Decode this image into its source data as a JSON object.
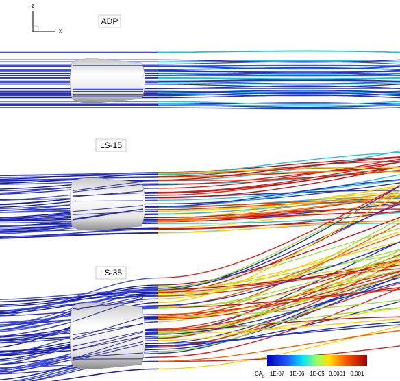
{
  "axes": {
    "vertical": "z",
    "horizontal": "x"
  },
  "panels": [
    {
      "label": "ADP"
    },
    {
      "label": "LS-15"
    },
    {
      "label": "LS-35"
    }
  ],
  "colorbar": {
    "title": "CA",
    "subscript": "b",
    "ticks": [
      "1E-07",
      "1E-06",
      "1E-05",
      "0.0001",
      "0.001"
    ]
  }
}
